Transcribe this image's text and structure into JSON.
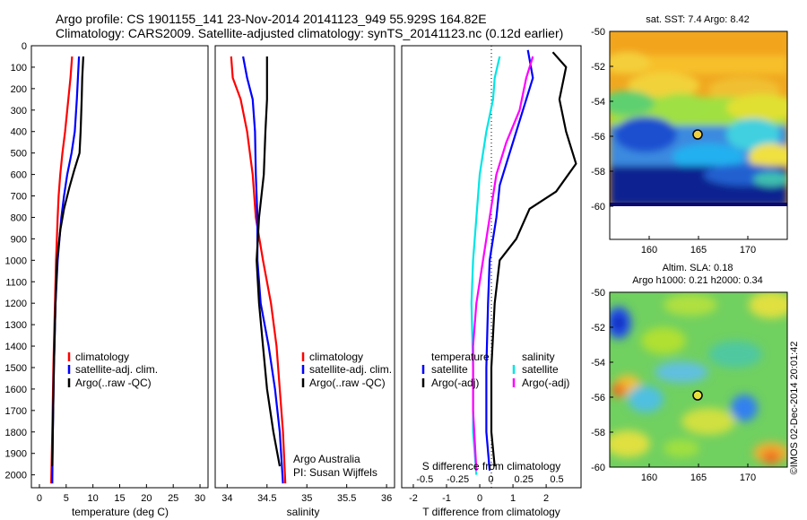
{
  "title": {
    "line1": "Argo profile: CS 1901155_141 23-Nov-2014 20141123_949 55.929S 164.82E",
    "line2": "Climatology: CARS2009. Satellite-adjusted climatology: synTS_20141123.nc (0.12d earlier)"
  },
  "colors": {
    "climatology": "#ff0000",
    "satellite": "#0000ff",
    "argo": "#000000",
    "sat_salinity": "#00e5e5",
    "argo_salinity": "#ff00ff"
  },
  "chart_data": [
    {
      "type": "line",
      "xlabel": "temperature (deg C)",
      "x_ticks": [
        0,
        5,
        10,
        15,
        20,
        25,
        30
      ],
      "xlim": [
        -1.5,
        31.5
      ],
      "y_ticks": [
        0,
        100,
        200,
        300,
        400,
        500,
        600,
        700,
        800,
        900,
        1000,
        1100,
        1200,
        1300,
        1400,
        1500,
        1600,
        1700,
        1800,
        1900,
        2000
      ],
      "ylim": [
        2060,
        0
      ],
      "legend": [
        "climatology",
        "satellite-adj. clim.",
        "Argo(..raw -QC)"
      ],
      "series": [
        {
          "name": "climatology",
          "color": "red",
          "points": [
            [
              6.1,
              50
            ],
            [
              5.8,
              150
            ],
            [
              5.4,
              250
            ],
            [
              4.8,
              400
            ],
            [
              4.3,
              500
            ],
            [
              3.9,
              600
            ],
            [
              3.6,
              700
            ],
            [
              3.4,
              800
            ],
            [
              3.1,
              1000
            ],
            [
              2.9,
              1200
            ],
            [
              2.6,
              1500
            ],
            [
              2.4,
              1800
            ],
            [
              2.2,
              2040
            ]
          ]
        },
        {
          "name": "satellite-adj. clim.",
          "color": "blue",
          "points": [
            [
              7.4,
              50
            ],
            [
              7.2,
              150
            ],
            [
              7.0,
              250
            ],
            [
              6.6,
              400
            ],
            [
              6.0,
              500
            ],
            [
              5.2,
              600
            ],
            [
              4.6,
              700
            ],
            [
              4.1,
              800
            ],
            [
              3.4,
              1000
            ],
            [
              3.0,
              1200
            ],
            [
              2.7,
              1500
            ],
            [
              2.5,
              1800
            ],
            [
              2.4,
              2040
            ]
          ]
        },
        {
          "name": "Argo(..raw -QC)",
          "color": "black",
          "points": [
            [
              8.2,
              50
            ],
            [
              8.0,
              150
            ],
            [
              7.9,
              250
            ],
            [
              7.7,
              400
            ],
            [
              7.5,
              500
            ],
            [
              6.5,
              580
            ],
            [
              5.6,
              660
            ],
            [
              4.6,
              760
            ],
            [
              3.9,
              860
            ],
            [
              3.3,
              1000
            ],
            [
              3.0,
              1200
            ],
            [
              2.7,
              1500
            ],
            [
              2.5,
              1800
            ],
            [
              2.4,
              1960
            ]
          ]
        }
      ]
    },
    {
      "type": "line",
      "xlabel": "salinity",
      "x_ticks": [
        34,
        34.5,
        35,
        35.5,
        36
      ],
      "xlim": [
        33.85,
        36.1
      ],
      "ylim": [
        2060,
        0
      ],
      "legend": [
        "climatology",
        "satellite-adj. clim.",
        "Argo(..raw -QC)"
      ],
      "annotation": [
        "Argo Australia",
        "PI: Susan Wijffels"
      ],
      "series": [
        {
          "name": "climatology",
          "color": "red",
          "points": [
            [
              34.05,
              50
            ],
            [
              34.07,
              150
            ],
            [
              34.17,
              250
            ],
            [
              34.25,
              400
            ],
            [
              34.32,
              600
            ],
            [
              34.36,
              800
            ],
            [
              34.45,
              1000
            ],
            [
              34.55,
              1200
            ],
            [
              34.62,
              1400
            ],
            [
              34.66,
              1600
            ],
            [
              34.7,
              1800
            ],
            [
              34.73,
              2040
            ]
          ]
        },
        {
          "name": "satellite-adj. clim.",
          "color": "blue",
          "points": [
            [
              34.2,
              50
            ],
            [
              34.25,
              150
            ],
            [
              34.32,
              250
            ],
            [
              34.35,
              400
            ],
            [
              34.36,
              600
            ],
            [
              34.38,
              800
            ],
            [
              34.38,
              1000
            ],
            [
              34.42,
              1200
            ],
            [
              34.52,
              1400
            ],
            [
              34.6,
              1600
            ],
            [
              34.66,
              1800
            ],
            [
              34.7,
              2040
            ]
          ]
        },
        {
          "name": "Argo(..raw -QC)",
          "color": "black",
          "points": [
            [
              34.5,
              50
            ],
            [
              34.5,
              150
            ],
            [
              34.5,
              250
            ],
            [
              34.48,
              400
            ],
            [
              34.46,
              600
            ],
            [
              34.4,
              800
            ],
            [
              34.37,
              1000
            ],
            [
              34.4,
              1200
            ],
            [
              34.45,
              1400
            ],
            [
              34.5,
              1600
            ],
            [
              34.58,
              1800
            ],
            [
              34.66,
              1960
            ]
          ]
        }
      ]
    },
    {
      "type": "line",
      "xlabel": "T difference from climatology",
      "x_ticks": [
        -2,
        -1,
        0,
        1,
        2
      ],
      "xlim": [
        -2.35,
        3.05
      ],
      "x2label": "S difference from climatology",
      "x2_ticks": [
        -0.5,
        -0.25,
        0,
        0.25,
        0.5
      ],
      "ylim": [
        2060,
        0
      ],
      "legend": [
        "temperature",
        "satellite",
        "Argo(-adj)",
        "salinity",
        "satellite",
        "Argo(-adj)"
      ],
      "series": [
        {
          "name": "temperature satellite",
          "color": "blue",
          "points": [
            [
              1.45,
              20
            ],
            [
              1.6,
              150
            ],
            [
              1.3,
              300
            ],
            [
              1.0,
              450
            ],
            [
              0.8,
              550
            ],
            [
              0.6,
              650
            ],
            [
              0.5,
              800
            ],
            [
              0.3,
              1000
            ],
            [
              0.25,
              1200
            ],
            [
              0.2,
              1500
            ],
            [
              0.2,
              1800
            ],
            [
              0.3,
              1980
            ]
          ]
        },
        {
          "name": "temperature Argo(-adj)",
          "color": "black",
          "points": [
            [
              2.2,
              30
            ],
            [
              2.6,
              100
            ],
            [
              2.4,
              250
            ],
            [
              2.6,
              400
            ],
            [
              2.9,
              550
            ],
            [
              2.3,
              680
            ],
            [
              1.5,
              760
            ],
            [
              1.1,
              900
            ],
            [
              0.6,
              1000
            ],
            [
              0.45,
              1200
            ],
            [
              0.35,
              1500
            ],
            [
              0.35,
              1800
            ],
            [
              0.45,
              1960
            ]
          ]
        },
        {
          "name": "salinity satellite",
          "color": "cyan",
          "points": [
            [
              0.6,
              50
            ],
            [
              0.45,
              150
            ],
            [
              0.4,
              250
            ],
            [
              0.2,
              400
            ],
            [
              0.0,
              600
            ],
            [
              -0.1,
              800
            ],
            [
              -0.2,
              1000
            ],
            [
              -0.25,
              1200
            ],
            [
              -0.2,
              1500
            ],
            [
              -0.2,
              1800
            ],
            [
              -0.1,
              2000
            ]
          ]
        },
        {
          "name": "salinity Argo(-adj)",
          "color": "magenta",
          "points": [
            [
              1.6,
              50
            ],
            [
              1.4,
              150
            ],
            [
              1.2,
              300
            ],
            [
              0.8,
              450
            ],
            [
              0.5,
              600
            ],
            [
              0.3,
              800
            ],
            [
              0.1,
              1000
            ],
            [
              -0.1,
              1200
            ],
            [
              -0.2,
              1400
            ],
            [
              -0.2,
              1700
            ],
            [
              -0.1,
              1980
            ]
          ]
        }
      ]
    },
    {
      "type": "heatmap",
      "title": "sat. SST: 7.4 Argo: 8.42",
      "x_ticks": [
        160,
        165,
        170
      ],
      "y_ticks": [
        -50,
        -52,
        -54,
        -56,
        -58,
        -60
      ],
      "marker": [
        164.82,
        -55.929
      ]
    },
    {
      "type": "heatmap",
      "title": "Altim. SLA: 0.18",
      "subtitle": "Argo h1000: 0.21 h2000: 0.34",
      "x_ticks": [
        160,
        165,
        170
      ],
      "y_ticks": [
        -50,
        -52,
        -54,
        -56,
        -58,
        -60
      ],
      "marker": [
        164.82,
        -55.929
      ]
    }
  ],
  "side_label": "©IMOS 02-Dec-2014 20:01:42"
}
